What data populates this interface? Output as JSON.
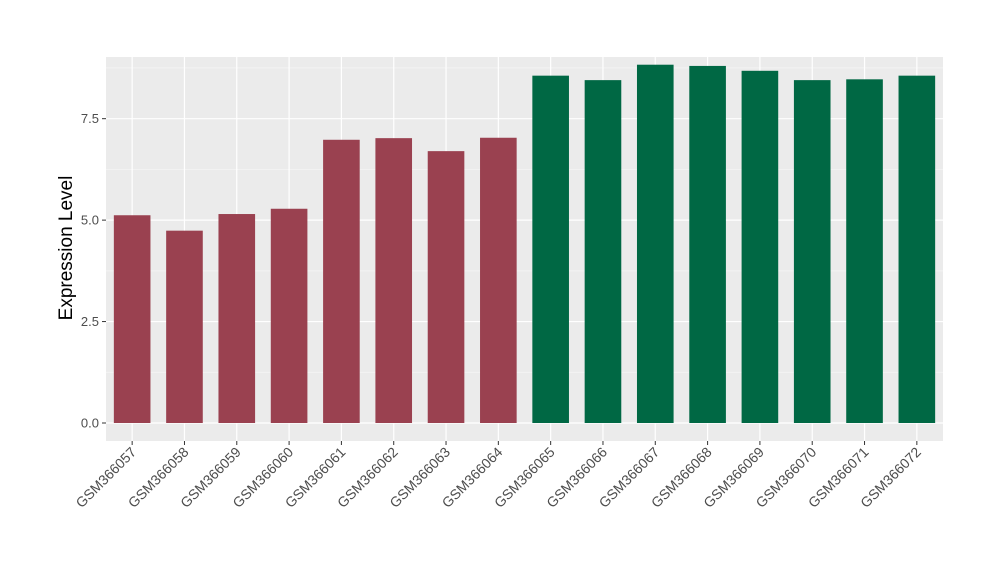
{
  "chart_data": {
    "type": "bar",
    "title": "",
    "xlabel": "",
    "ylabel": "Expression Level",
    "ylim": [
      0,
      9.02
    ],
    "yticks": [
      0.0,
      2.5,
      5.0,
      7.5
    ],
    "ytick_labels": [
      "0.0",
      "2.5",
      "5.0",
      "7.5"
    ],
    "grid": true,
    "legend": "none",
    "categories": [
      "GSM366057",
      "GSM366058",
      "GSM366059",
      "GSM366060",
      "GSM366061",
      "GSM366062",
      "GSM366063",
      "GSM366064",
      "GSM366065",
      "GSM366066",
      "GSM366067",
      "GSM366068",
      "GSM366069",
      "GSM366070",
      "GSM366071",
      "GSM366072"
    ],
    "values": [
      5.12,
      4.74,
      5.15,
      5.28,
      6.98,
      7.02,
      6.7,
      7.03,
      8.56,
      8.45,
      8.83,
      8.8,
      8.68,
      8.45,
      8.47,
      8.56
    ],
    "group_index": [
      0,
      0,
      0,
      0,
      0,
      0,
      0,
      0,
      1,
      1,
      1,
      1,
      1,
      1,
      1,
      1
    ],
    "group_colors": [
      "#9a4150",
      "#006844"
    ]
  },
  "colors": {
    "panel_background": "#ebebeb",
    "grid_major": "#ffffff",
    "grid_minor": "#f5f5f5",
    "tick": "#333333"
  }
}
